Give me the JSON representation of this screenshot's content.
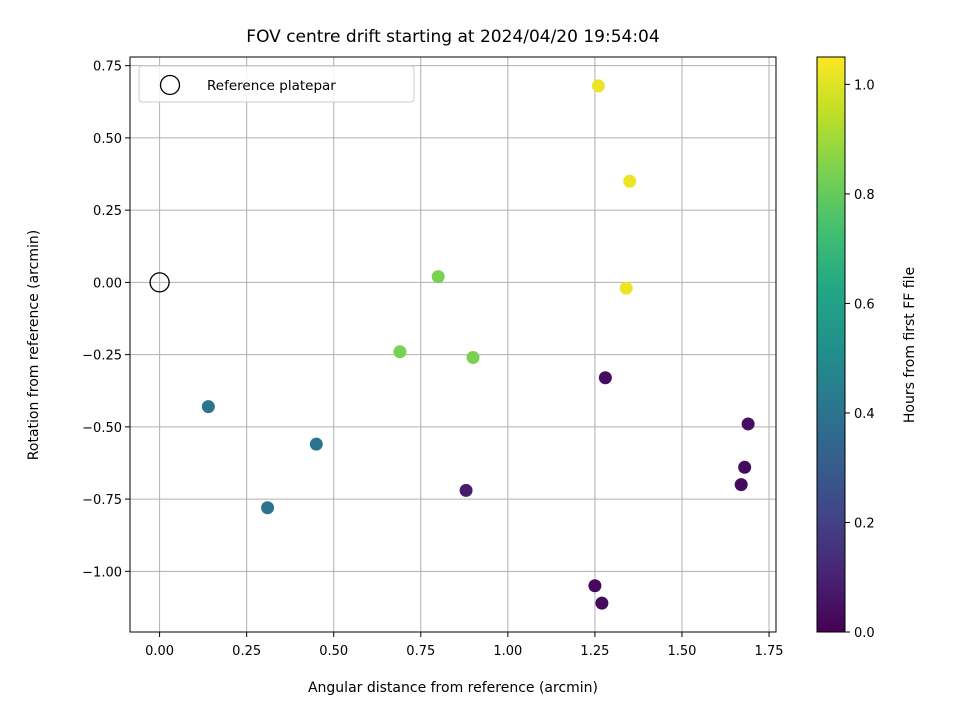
{
  "chart_data": {
    "type": "scatter",
    "title": "FOV centre drift starting at 2024/04/20 19:54:04",
    "xlabel": "Angular distance from reference (arcmin)",
    "ylabel": "Rotation from reference (arcmin)",
    "xlim": [
      -0.085,
      1.77
    ],
    "ylim": [
      -1.21,
      0.78
    ],
    "xticks": [
      0.0,
      0.25,
      0.5,
      0.75,
      1.0,
      1.25,
      1.5,
      1.75
    ],
    "xtick_labels": [
      "0.00",
      "0.25",
      "0.50",
      "0.75",
      "1.00",
      "1.25",
      "1.50",
      "1.75"
    ],
    "yticks": [
      0.75,
      0.5,
      0.25,
      0.0,
      -0.25,
      -0.5,
      -0.75,
      -1.0
    ],
    "ytick_labels": [
      "0.75",
      "0.50",
      "0.25",
      "0.00",
      "−0.25",
      "−0.50",
      "−0.75",
      "−1.00"
    ],
    "grid": true,
    "legend": {
      "placement": "top-left",
      "entries": [
        {
          "label": "Reference platepar",
          "marker": "open-circle"
        }
      ]
    },
    "reference_point": {
      "x": 0.0,
      "y": 0.0
    },
    "colorbar": {
      "label": "Hours from first FF file",
      "colormap": "viridis",
      "min": 0.0,
      "max": 1.05,
      "ticks": [
        0.0,
        0.2,
        0.4,
        0.6,
        0.8,
        1.0
      ],
      "tick_labels": [
        "0.0",
        "0.2",
        "0.4",
        "0.6",
        "0.8",
        "1.0"
      ]
    },
    "points": [
      {
        "x": 1.25,
        "y": -1.05,
        "c": 0.02
      },
      {
        "x": 1.27,
        "y": -1.11,
        "c": 0.03
      },
      {
        "x": 1.28,
        "y": -0.33,
        "c": 0.04
      },
      {
        "x": 1.67,
        "y": -0.7,
        "c": 0.03
      },
      {
        "x": 1.68,
        "y": -0.64,
        "c": 0.03
      },
      {
        "x": 1.69,
        "y": -0.49,
        "c": 0.04
      },
      {
        "x": 0.88,
        "y": -0.72,
        "c": 0.08
      },
      {
        "x": 0.14,
        "y": -0.43,
        "c": 0.4
      },
      {
        "x": 0.31,
        "y": -0.78,
        "c": 0.4
      },
      {
        "x": 0.45,
        "y": -0.56,
        "c": 0.4
      },
      {
        "x": 0.69,
        "y": -0.24,
        "c": 0.84
      },
      {
        "x": 0.8,
        "y": 0.02,
        "c": 0.84
      },
      {
        "x": 0.9,
        "y": -0.26,
        "c": 0.84
      },
      {
        "x": 1.26,
        "y": 0.68,
        "c": 1.02
      },
      {
        "x": 1.35,
        "y": 0.35,
        "c": 1.02
      },
      {
        "x": 1.34,
        "y": -0.02,
        "c": 1.02
      }
    ]
  }
}
